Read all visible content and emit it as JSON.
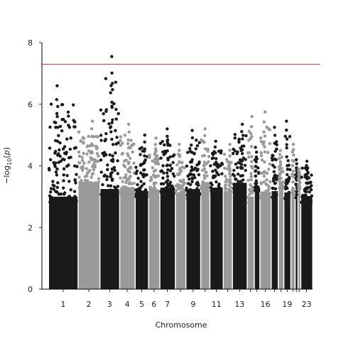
{
  "chart_data": {
    "type": "scatter",
    "subtype": "manhattan",
    "title": "",
    "xlabel": "Chromosome",
    "ylabel": "−log10(p)",
    "ylim": [
      0,
      8
    ],
    "yticks": [
      0,
      2,
      4,
      6,
      8
    ],
    "significance_threshold": 7.3,
    "threshold_color": "#cc3333",
    "series_colors": [
      "#1a1a1a",
      "#999999"
    ],
    "chromosomes": [
      {
        "chr": 1,
        "label": "1",
        "max": 6.6,
        "color": 0
      },
      {
        "chr": 2,
        "label": "2",
        "max": 5.45,
        "color": 1
      },
      {
        "chr": 3,
        "label": "3",
        "max": 7.55,
        "color": 0
      },
      {
        "chr": 4,
        "label": "4",
        "max": 5.35,
        "color": 1
      },
      {
        "chr": 5,
        "label": "5",
        "max": 5.0,
        "color": 0
      },
      {
        "chr": 6,
        "label": "6",
        "max": 4.9,
        "color": 1
      },
      {
        "chr": 7,
        "label": "7",
        "max": 5.2,
        "color": 0
      },
      {
        "chr": 8,
        "label": "",
        "max": 4.7,
        "color": 1
      },
      {
        "chr": 9,
        "label": "9",
        "max": 5.15,
        "color": 0
      },
      {
        "chr": 10,
        "label": "",
        "max": 5.2,
        "color": 1
      },
      {
        "chr": 11,
        "label": "11",
        "max": 4.8,
        "color": 0
      },
      {
        "chr": 12,
        "label": "",
        "max": 4.7,
        "color": 1
      },
      {
        "chr": 13,
        "label": "13",
        "max": 5.35,
        "color": 0
      },
      {
        "chr": 14,
        "label": "",
        "max": 5.6,
        "color": 1
      },
      {
        "chr": 15,
        "label": "",
        "max": 4.6,
        "color": 0
      },
      {
        "chr": 16,
        "label": "16",
        "max": 5.75,
        "color": 1
      },
      {
        "chr": 17,
        "label": "",
        "max": 5.25,
        "color": 0
      },
      {
        "chr": 18,
        "label": "",
        "max": 4.5,
        "color": 1
      },
      {
        "chr": 19,
        "label": "19",
        "max": 5.45,
        "color": 0
      },
      {
        "chr": 20,
        "label": "",
        "max": 4.7,
        "color": 1
      },
      {
        "chr": 21,
        "label": "",
        "max": 4.2,
        "color": 0
      },
      {
        "chr": 22,
        "label": "",
        "max": 3.9,
        "color": 1
      },
      {
        "chr": 23,
        "label": "23",
        "max": 4.15,
        "color": 0
      }
    ]
  }
}
